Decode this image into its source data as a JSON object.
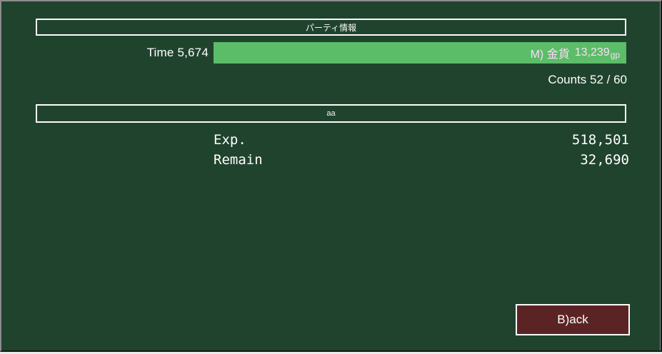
{
  "colors": {
    "bg_green": "#20432e",
    "bar_green": "#5cbd68",
    "button_maroon": "#5b2424",
    "bar_text_pink": "#fbdcf8",
    "frame_light": "#8c8c8c",
    "frame_dark": "#161616"
  },
  "header": {
    "title": "パーティ情報"
  },
  "status": {
    "time_label": "Time 5,674",
    "gold_bar": {
      "prefix": "M) 金貨",
      "amount": "13,239",
      "unit": "gp"
    },
    "counts_label": "Counts 52 / 60"
  },
  "party": {
    "name": "aa",
    "rows": [
      {
        "label": "Exp.",
        "value": "518,501"
      },
      {
        "label": "Remain",
        "value": "32,690"
      }
    ]
  },
  "footer": {
    "back_label": "B)ack"
  }
}
